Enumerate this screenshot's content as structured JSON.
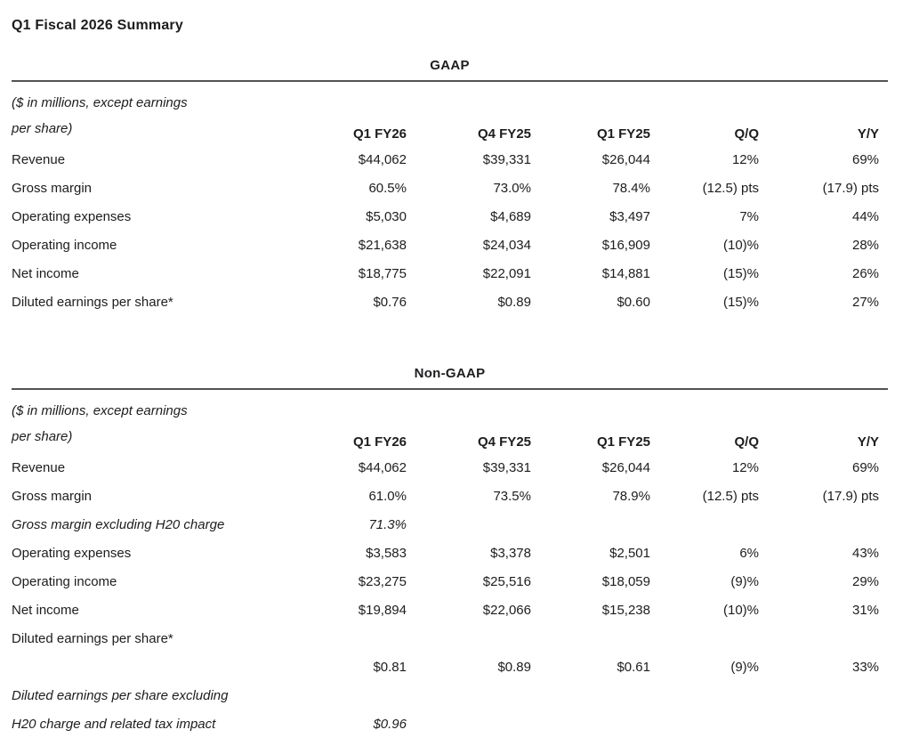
{
  "page": {
    "title": "Q1 Fiscal 2026 Summary"
  },
  "tables": [
    {
      "section_title": "GAAP",
      "note_line1": "($ in millions, except earnings",
      "note_line2": "per share)",
      "columns": [
        "Q1 FY26",
        "Q4 FY25",
        "Q1 FY25",
        "Q/Q",
        "Y/Y"
      ],
      "rows": [
        {
          "label": "Revenue",
          "values": [
            "$44,062",
            "$39,331",
            "$26,044",
            "12%",
            "69%"
          ]
        },
        {
          "label": "Gross margin",
          "values": [
            "60.5%",
            "73.0%",
            "78.4%",
            "(12.5) pts",
            "(17.9) pts"
          ]
        },
        {
          "label": "Operating expenses",
          "values": [
            "$5,030",
            "$4,689",
            "$3,497",
            "7%",
            "44%"
          ]
        },
        {
          "label": "Operating income",
          "values": [
            "$21,638",
            "$24,034",
            "$16,909",
            "(10)%",
            "28%"
          ]
        },
        {
          "label": "Net income",
          "values": [
            "$18,775",
            "$22,091",
            "$14,881",
            "(15)%",
            "26%"
          ]
        },
        {
          "label": "Diluted earnings per share*",
          "values": [
            "$0.76",
            "$0.89",
            "$0.60",
            "(15)%",
            "27%"
          ]
        }
      ]
    },
    {
      "section_title": "Non-GAAP",
      "note_line1": "($ in millions, except earnings",
      "note_line2": "per share)",
      "columns": [
        "Q1 FY26",
        "Q4 FY25",
        "Q1 FY25",
        "Q/Q",
        "Y/Y"
      ],
      "rows": [
        {
          "label": "Revenue",
          "values": [
            "$44,062",
            "$39,331",
            "$26,044",
            "12%",
            "69%"
          ]
        },
        {
          "label": "Gross margin",
          "values": [
            "61.0%",
            "73.5%",
            "78.9%",
            "(12.5) pts",
            "(17.9) pts"
          ]
        },
        {
          "label": "Gross margin excluding H20 charge",
          "values": [
            "71.3%",
            "",
            "",
            "",
            ""
          ]
        },
        {
          "label": "Operating expenses",
          "values": [
            "$3,583",
            "$3,378",
            "$2,501",
            "6%",
            "43%"
          ]
        },
        {
          "label": "Operating income",
          "values": [
            "$23,275",
            "$25,516",
            "$18,059",
            "(9)%",
            "29%"
          ]
        },
        {
          "label": "Net income",
          "values": [
            "$19,894",
            "$22,066",
            "$15,238",
            "(10)%",
            "31%"
          ]
        },
        {
          "label": "Diluted earnings per share*",
          "values": [
            "",
            "",
            "",
            "",
            ""
          ]
        },
        {
          "label": "",
          "values": [
            "$0.81",
            "$0.89",
            "$0.61",
            "(9)%",
            "33%"
          ]
        },
        {
          "label": "Diluted earnings per share excluding",
          "values": [
            "",
            "",
            "",
            "",
            ""
          ]
        },
        {
          "label": "H20 charge and related tax impact",
          "values": [
            "$0.96",
            "",
            "",
            "",
            ""
          ]
        }
      ]
    }
  ]
}
